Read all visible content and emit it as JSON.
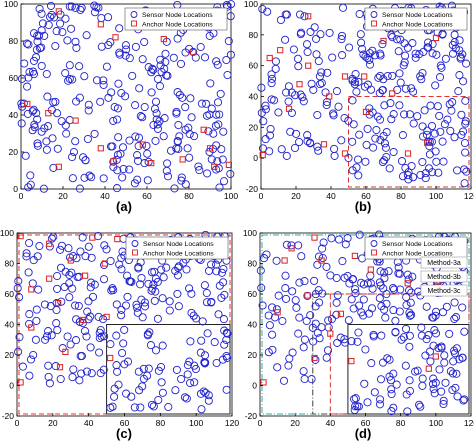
{
  "figure": {
    "panel_labels": [
      "(a)",
      "(b)",
      "(c)",
      "(d)"
    ]
  },
  "colors": {
    "sensor": "#2222cc",
    "anchor": "#dd2222",
    "method_3a": "#dd3333",
    "method_3b": "#444444",
    "method_3c": "#33aaaa"
  },
  "chart_data": [
    {
      "type": "scatter",
      "panel": "(a)",
      "xlim": [
        0,
        100
      ],
      "ylim": [
        0,
        100
      ],
      "x_ticks": [
        0,
        20,
        40,
        60,
        80,
        100
      ],
      "y_ticks": [
        0,
        20,
        40,
        60,
        80,
        100
      ],
      "legend": {
        "placement": "top-right",
        "entries": [
          "Sensor Node Locations",
          "Anchor Node Locations"
        ]
      },
      "series": [
        {
          "name": "Sensor Node Locations",
          "marker": "circle",
          "count": 300,
          "region": [
            0,
            100,
            0,
            100
          ]
        },
        {
          "name": "Anchor Node Locations",
          "marker": "square",
          "points": [
            [
              18,
              96
            ],
            [
              38,
              89
            ],
            [
              45,
              82
            ],
            [
              68,
              81
            ],
            [
              82,
              74
            ],
            [
              3,
              46
            ],
            [
              13,
              41
            ],
            [
              26,
              37
            ],
            [
              38,
              22
            ],
            [
              58,
              24
            ],
            [
              87,
              32
            ],
            [
              77,
              16
            ],
            [
              90,
              22
            ],
            [
              44,
              15
            ],
            [
              62,
              14
            ],
            [
              18,
              12
            ],
            [
              92,
              12
            ],
            [
              99,
              13
            ]
          ]
        }
      ]
    },
    {
      "type": "scatter",
      "panel": "(b)",
      "xlim": [
        0,
        120
      ],
      "ylim": [
        -20,
        100
      ],
      "x_ticks": [
        0,
        20,
        40,
        60,
        80,
        100,
        120
      ],
      "y_ticks": [
        -20,
        0,
        20,
        40,
        60,
        80,
        100
      ],
      "legend": {
        "placement": "top-right",
        "entries": [
          "Sensor Node Locations",
          "Anchor Node Locations"
        ]
      },
      "regions": [
        {
          "style": "red-dashed",
          "x": [
            50,
            120
          ],
          "y": [
            -20,
            40
          ]
        }
      ],
      "series": [
        {
          "name": "Sensor Node Locations",
          "marker": "circle",
          "count": 300
        },
        {
          "name": "Anchor Node Locations",
          "marker": "square",
          "points": [
            [
              27,
              92
            ],
            [
              11,
              70
            ],
            [
              27,
              60
            ],
            [
              39,
              40
            ],
            [
              48,
              53
            ],
            [
              59,
              53
            ],
            [
              70,
              76
            ],
            [
              100,
              78
            ],
            [
              60,
              30
            ],
            [
              75,
              42
            ],
            [
              95,
              10
            ],
            [
              84,
              3
            ],
            [
              36,
              9
            ],
            [
              48,
              3
            ],
            [
              1,
              2
            ],
            [
              16,
              32
            ],
            [
              5,
              65
            ],
            [
              22,
              48
            ]
          ]
        }
      ]
    },
    {
      "type": "scatter",
      "panel": "(c)",
      "xlim": [
        0,
        120
      ],
      "ylim": [
        -20,
        100
      ],
      "x_ticks": [
        0,
        20,
        40,
        60,
        80,
        100,
        120
      ],
      "y_ticks": [
        -20,
        0,
        20,
        40,
        60,
        80,
        100
      ],
      "legend": {
        "placement": "top-right",
        "entries": [
          "Sensor Node Locations",
          "Anchor Node Locations"
        ]
      },
      "regions": [
        {
          "style": "red-dashed",
          "x": [
            0,
            120
          ],
          "y": [
            -20,
            100
          ]
        },
        {
          "style": "black-solid",
          "x": [
            50,
            120
          ],
          "y": [
            -20,
            40
          ]
        }
      ],
      "series": [
        {
          "name": "Sensor Node Locations",
          "marker": "circle",
          "count": 300
        },
        {
          "name": "Anchor Node Locations",
          "marker": "square",
          "points": [
            [
              2,
              98
            ],
            [
              18,
              93
            ],
            [
              42,
              97
            ],
            [
              56,
              96
            ],
            [
              30,
              82
            ],
            [
              49,
              80
            ],
            [
              69,
              85
            ],
            [
              38,
              72
            ],
            [
              8,
              63
            ],
            [
              23,
              54
            ],
            [
              50,
              45
            ],
            [
              37,
              43
            ],
            [
              27,
              22
            ],
            [
              52,
              18
            ],
            [
              24,
              12
            ],
            [
              2,
              2
            ],
            [
              8,
              38
            ],
            [
              18,
              70
            ]
          ]
        }
      ]
    },
    {
      "type": "scatter",
      "panel": "(d)",
      "xlim": [
        0,
        120
      ],
      "ylim": [
        -20,
        100
      ],
      "x_ticks": [
        0,
        20,
        40,
        60,
        80,
        100,
        120
      ],
      "y_ticks": [
        -20,
        0,
        20,
        40,
        60,
        80,
        100
      ],
      "legend": {
        "placement": "top-right",
        "entries": [
          "Sensor Node Locations",
          "Anchor Node Locations"
        ]
      },
      "annotations": [
        "Method-3c",
        "Method-3b",
        "Method-3a"
      ],
      "regions": [
        {
          "style": "cyan-dashdot",
          "name": "Method-3c",
          "x": [
            0,
            120
          ],
          "y": [
            -20,
            100
          ]
        },
        {
          "style": "gray-dashdot",
          "name": "Method-3b",
          "x": [
            30,
            120
          ],
          "y": [
            -20,
            60
          ]
        },
        {
          "style": "red-dashed",
          "name": "Method-3a",
          "x": [
            40,
            120
          ],
          "y": [
            -20,
            60
          ]
        },
        {
          "style": "black-solid",
          "x": [
            50,
            120
          ],
          "y": [
            -20,
            40
          ]
        }
      ],
      "series": [
        {
          "name": "Sensor Node Locations",
          "marker": "circle",
          "count": 300
        },
        {
          "name": "Anchor Node Locations",
          "marker": "square",
          "points": [
            [
              18,
              90
            ],
            [
              31,
              97
            ],
            [
              14,
              82
            ],
            [
              54,
              85
            ],
            [
              63,
              76
            ],
            [
              84,
              67
            ],
            [
              101,
              68
            ],
            [
              27,
              59
            ],
            [
              46,
              47
            ],
            [
              40,
              34
            ],
            [
              31,
              18
            ],
            [
              52,
              16
            ],
            [
              96,
              11
            ],
            [
              100,
              19
            ],
            [
              2,
              2
            ],
            [
              35,
              82
            ],
            [
              10,
              48
            ]
          ]
        }
      ]
    }
  ]
}
